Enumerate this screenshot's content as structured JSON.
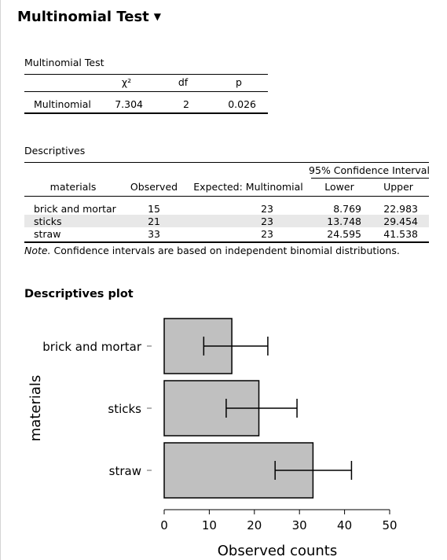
{
  "page": {
    "title": "Multinomial Test",
    "caret": "▼"
  },
  "multinomial_table": {
    "title": "Multinomial Test",
    "headers": [
      "",
      "χ²",
      "df",
      "p"
    ],
    "row": {
      "label": "Multinomial",
      "chi2": "7.304",
      "df": "2",
      "p": "0.026"
    }
  },
  "descriptives_table": {
    "title": "Descriptives",
    "ci_header": "95% Confidence Interval",
    "headers": [
      "materials",
      "Observed",
      "Expected: Multinomial",
      "Lower",
      "Upper"
    ],
    "rows": [
      {
        "material": "brick and mortar",
        "observed": "15",
        "expected": "23",
        "lower": "8.769",
        "upper": "22.983"
      },
      {
        "material": "sticks",
        "observed": "21",
        "expected": "23",
        "lower": "13.748",
        "upper": "29.454"
      },
      {
        "material": "straw",
        "observed": "33",
        "expected": "23",
        "lower": "24.595",
        "upper": "41.538"
      }
    ],
    "note_prefix": "Note.",
    "note_text": " Confidence intervals are based on independent binomial distributions."
  },
  "plot": {
    "title": "Descriptives plot"
  },
  "chart_data": {
    "type": "bar",
    "orientation": "horizontal",
    "categories": [
      "brick and mortar",
      "sticks",
      "straw"
    ],
    "values": [
      15,
      21,
      33
    ],
    "ci_lower": [
      8.769,
      13.748,
      24.595
    ],
    "ci_upper": [
      22.983,
      29.454,
      41.538
    ],
    "xlabel": "Observed counts",
    "ylabel": "materials",
    "xlim": [
      0,
      50
    ],
    "xticks": [
      0,
      10,
      20,
      30,
      40,
      50
    ],
    "bar_color": "#c0c0c0",
    "grid": false
  }
}
